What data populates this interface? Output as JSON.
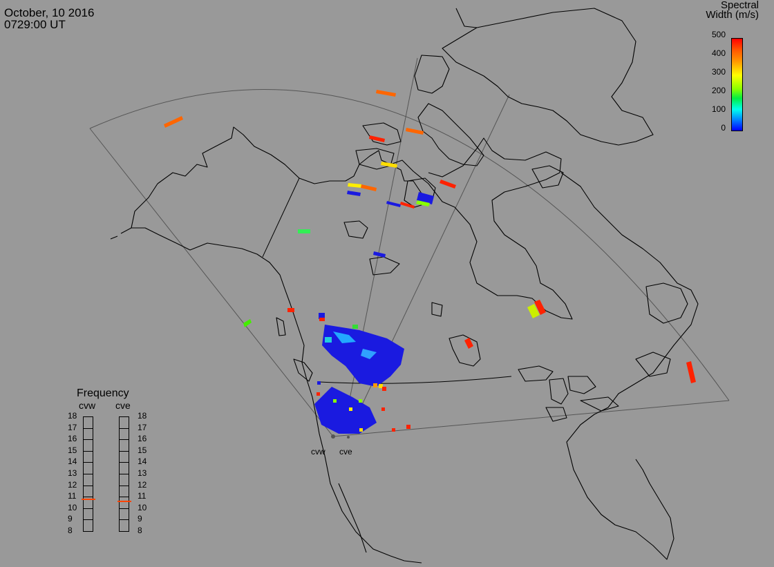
{
  "header": {
    "date": "October, 10 2016",
    "time": "0729:00 UT"
  },
  "colorbar": {
    "title_line1": "Spectral",
    "title_line2": "Width (m/s)",
    "ticks": [
      "500",
      "400",
      "300",
      "200",
      "100",
      "0"
    ],
    "min": 0,
    "max": 500
  },
  "frequency": {
    "title": "Frequency",
    "columns": [
      "cvw",
      "cve"
    ],
    "ticks": [
      "18",
      "17",
      "16",
      "15",
      "14",
      "13",
      "12",
      "11",
      "10",
      "9",
      "8"
    ],
    "cvw_value": 10.8,
    "cve_value": 10.6,
    "marker_color": "#ff4400"
  },
  "sites": {
    "cvw": "cvw",
    "cve": "cve"
  },
  "colors": {
    "background": "#999999",
    "coast": "#000000",
    "fov": "#555555"
  }
}
